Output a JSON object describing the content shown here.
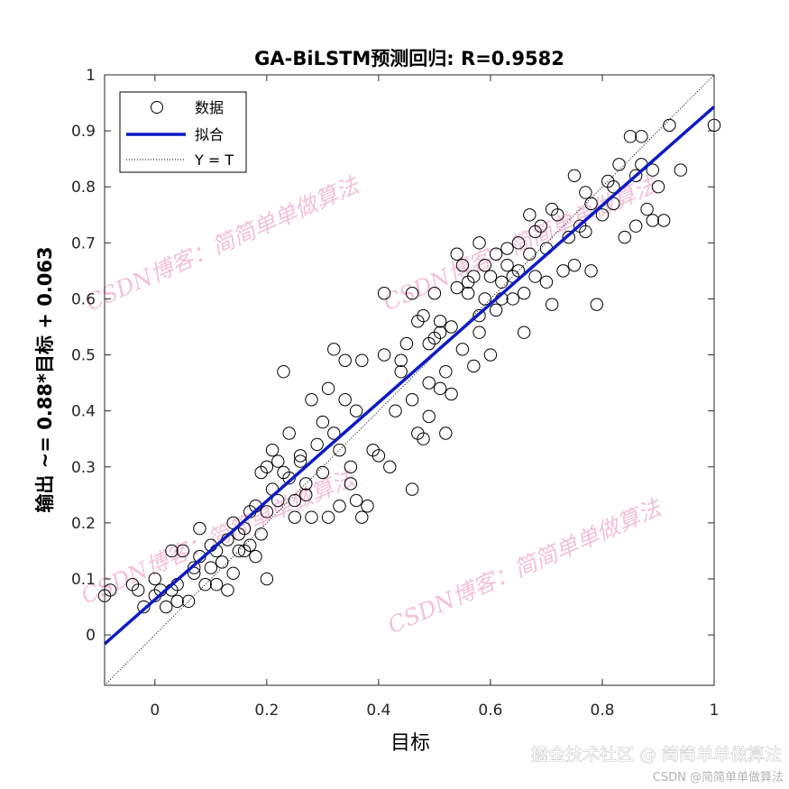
{
  "chart_data": {
    "type": "scatter",
    "title": "GA-BiLSTM预测回归: R=0.9582",
    "xlabel": "目标",
    "ylabel": "输出 ~= 0.88*目标 + 0.063",
    "xlim": [
      -0.09,
      1.0
    ],
    "ylim": [
      -0.09,
      1.0
    ],
    "xticks": [
      0,
      0.2,
      0.4,
      0.6,
      0.8,
      1
    ],
    "yticks": [
      0,
      0.1,
      0.2,
      0.3,
      0.4,
      0.5,
      0.6,
      0.7,
      0.8,
      0.9,
      1
    ],
    "xtick_labels": [
      "0",
      "0.2",
      "0.4",
      "0.6",
      "0.8",
      "1"
    ],
    "ytick_labels": [
      "0",
      "0.1",
      "0.2",
      "0.3",
      "0.4",
      "0.5",
      "0.6",
      "0.7",
      "0.8",
      "0.9",
      "1"
    ],
    "grid": false,
    "legend_position": "top-left",
    "legend": [
      "数据",
      "拟合",
      "Y = T"
    ],
    "fit": {
      "slope": 0.88,
      "intercept": 0.063,
      "color": "#0d1bc4"
    },
    "identity_line": {
      "style": "dotted",
      "color": "#000000"
    },
    "series": [
      {
        "name": "数据",
        "marker": "open-circle",
        "color": "#000000",
        "points": [
          [
            -0.09,
            0.07
          ],
          [
            -0.08,
            0.08
          ],
          [
            -0.04,
            0.09
          ],
          [
            -0.03,
            0.08
          ],
          [
            -0.02,
            0.05
          ],
          [
            0.0,
            0.07
          ],
          [
            0.0,
            0.1
          ],
          [
            0.01,
            0.08
          ],
          [
            0.02,
            0.05
          ],
          [
            0.03,
            0.08
          ],
          [
            0.03,
            0.15
          ],
          [
            0.04,
            0.06
          ],
          [
            0.04,
            0.09
          ],
          [
            0.05,
            0.15
          ],
          [
            0.06,
            0.06
          ],
          [
            0.07,
            0.12
          ],
          [
            0.07,
            0.11
          ],
          [
            0.08,
            0.14
          ],
          [
            0.08,
            0.19
          ],
          [
            0.09,
            0.09
          ],
          [
            0.1,
            0.12
          ],
          [
            0.1,
            0.16
          ],
          [
            0.11,
            0.09
          ],
          [
            0.11,
            0.15
          ],
          [
            0.12,
            0.13
          ],
          [
            0.13,
            0.17
          ],
          [
            0.13,
            0.08
          ],
          [
            0.14,
            0.2
          ],
          [
            0.14,
            0.11
          ],
          [
            0.15,
            0.15
          ],
          [
            0.15,
            0.18
          ],
          [
            0.16,
            0.19
          ],
          [
            0.16,
            0.15
          ],
          [
            0.17,
            0.22
          ],
          [
            0.17,
            0.16
          ],
          [
            0.18,
            0.23
          ],
          [
            0.18,
            0.14
          ],
          [
            0.19,
            0.29
          ],
          [
            0.19,
            0.18
          ],
          [
            0.2,
            0.1
          ],
          [
            0.2,
            0.22
          ],
          [
            0.2,
            0.3
          ],
          [
            0.21,
            0.26
          ],
          [
            0.21,
            0.33
          ],
          [
            0.22,
            0.31
          ],
          [
            0.22,
            0.24
          ],
          [
            0.23,
            0.29
          ],
          [
            0.23,
            0.47
          ],
          [
            0.24,
            0.28
          ],
          [
            0.24,
            0.36
          ],
          [
            0.25,
            0.21
          ],
          [
            0.25,
            0.24
          ],
          [
            0.26,
            0.32
          ],
          [
            0.26,
            0.31
          ],
          [
            0.27,
            0.27
          ],
          [
            0.27,
            0.25
          ],
          [
            0.28,
            0.42
          ],
          [
            0.28,
            0.21
          ],
          [
            0.29,
            0.34
          ],
          [
            0.3,
            0.38
          ],
          [
            0.3,
            0.29
          ],
          [
            0.31,
            0.21
          ],
          [
            0.31,
            0.44
          ],
          [
            0.32,
            0.36
          ],
          [
            0.32,
            0.51
          ],
          [
            0.33,
            0.33
          ],
          [
            0.33,
            0.23
          ],
          [
            0.34,
            0.49
          ],
          [
            0.34,
            0.42
          ],
          [
            0.35,
            0.3
          ],
          [
            0.35,
            0.27
          ],
          [
            0.36,
            0.4
          ],
          [
            0.36,
            0.24
          ],
          [
            0.37,
            0.21
          ],
          [
            0.37,
            0.49
          ],
          [
            0.38,
            0.23
          ],
          [
            0.39,
            0.33
          ],
          [
            0.4,
            0.32
          ],
          [
            0.41,
            0.61
          ],
          [
            0.41,
            0.5
          ],
          [
            0.42,
            0.3
          ],
          [
            0.43,
            0.4
          ],
          [
            0.44,
            0.49
          ],
          [
            0.44,
            0.47
          ],
          [
            0.45,
            0.52
          ],
          [
            0.46,
            0.61
          ],
          [
            0.46,
            0.42
          ],
          [
            0.46,
            0.26
          ],
          [
            0.47,
            0.56
          ],
          [
            0.47,
            0.36
          ],
          [
            0.48,
            0.57
          ],
          [
            0.48,
            0.35
          ],
          [
            0.49,
            0.52
          ],
          [
            0.49,
            0.39
          ],
          [
            0.49,
            0.45
          ],
          [
            0.5,
            0.53
          ],
          [
            0.5,
            0.61
          ],
          [
            0.51,
            0.54
          ],
          [
            0.51,
            0.56
          ],
          [
            0.51,
            0.44
          ],
          [
            0.52,
            0.47
          ],
          [
            0.52,
            0.36
          ],
          [
            0.53,
            0.55
          ],
          [
            0.53,
            0.43
          ],
          [
            0.54,
            0.62
          ],
          [
            0.54,
            0.68
          ],
          [
            0.55,
            0.66
          ],
          [
            0.55,
            0.51
          ],
          [
            0.56,
            0.61
          ],
          [
            0.56,
            0.63
          ],
          [
            0.57,
            0.48
          ],
          [
            0.57,
            0.64
          ],
          [
            0.58,
            0.7
          ],
          [
            0.58,
            0.57
          ],
          [
            0.58,
            0.54
          ],
          [
            0.59,
            0.66
          ],
          [
            0.59,
            0.6
          ],
          [
            0.6,
            0.5
          ],
          [
            0.6,
            0.64
          ],
          [
            0.61,
            0.58
          ],
          [
            0.61,
            0.68
          ],
          [
            0.62,
            0.63
          ],
          [
            0.62,
            0.6
          ],
          [
            0.63,
            0.66
          ],
          [
            0.63,
            0.69
          ],
          [
            0.64,
            0.6
          ],
          [
            0.64,
            0.64
          ],
          [
            0.65,
            0.65
          ],
          [
            0.65,
            0.7
          ],
          [
            0.66,
            0.54
          ],
          [
            0.66,
            0.61
          ],
          [
            0.67,
            0.75
          ],
          [
            0.67,
            0.68
          ],
          [
            0.68,
            0.64
          ],
          [
            0.68,
            0.72
          ],
          [
            0.69,
            0.73
          ],
          [
            0.7,
            0.63
          ],
          [
            0.7,
            0.69
          ],
          [
            0.71,
            0.76
          ],
          [
            0.71,
            0.59
          ],
          [
            0.72,
            0.75
          ],
          [
            0.73,
            0.65
          ],
          [
            0.74,
            0.71
          ],
          [
            0.75,
            0.82
          ],
          [
            0.75,
            0.66
          ],
          [
            0.76,
            0.73
          ],
          [
            0.77,
            0.72
          ],
          [
            0.77,
            0.79
          ],
          [
            0.78,
            0.65
          ],
          [
            0.78,
            0.77
          ],
          [
            0.79,
            0.59
          ],
          [
            0.8,
            0.75
          ],
          [
            0.81,
            0.81
          ],
          [
            0.82,
            0.8
          ],
          [
            0.82,
            0.77
          ],
          [
            0.83,
            0.84
          ],
          [
            0.84,
            0.71
          ],
          [
            0.85,
            0.89
          ],
          [
            0.86,
            0.73
          ],
          [
            0.86,
            0.82
          ],
          [
            0.87,
            0.84
          ],
          [
            0.87,
            0.89
          ],
          [
            0.88,
            0.76
          ],
          [
            0.89,
            0.74
          ],
          [
            0.89,
            0.83
          ],
          [
            0.9,
            0.8
          ],
          [
            0.91,
            0.74
          ],
          [
            0.92,
            0.91
          ],
          [
            0.94,
            0.83
          ],
          [
            1.0,
            0.91
          ]
        ]
      }
    ]
  },
  "watermark_text": "CSDN博客：简简单单做算法",
  "footer": {
    "text": "掘金技术社区 @ 简简单单做算法",
    "subtext": "CSDN @简简单单做算法"
  }
}
